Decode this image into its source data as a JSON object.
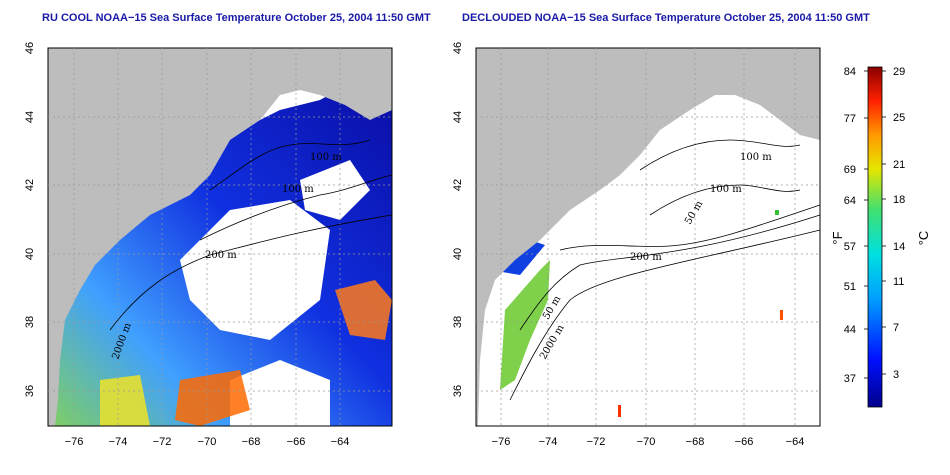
{
  "titles": {
    "left": "RU COOL NOAA−15 Sea Surface Temperature October 25, 2004 11:50 GMT",
    "right": "DECLOUDED NOAA−15 Sea Surface Temperature October 25, 2004 11:50 GMT"
  },
  "axes": {
    "lon_ticks": [
      "−76",
      "−74",
      "−72",
      "−70",
      "−68",
      "−66",
      "−64"
    ],
    "lat_ticks": [
      "46",
      "44",
      "42",
      "40",
      "38",
      "36"
    ]
  },
  "contour_labels": {
    "left": [
      "100 m",
      "100 m",
      "200 m",
      "2000 m"
    ],
    "right": [
      "100 m",
      "100 m",
      "50 m",
      "200 m",
      "50 m",
      "2000 m"
    ]
  },
  "colorbar": {
    "unit_f": "°F",
    "unit_c": "°C",
    "f_ticks": [
      "84",
      "77",
      "69",
      "64",
      "57",
      "51",
      "44",
      "37"
    ],
    "c_ticks": [
      "29",
      "25",
      "21",
      "18",
      "14",
      "11",
      "7",
      "3"
    ]
  },
  "colors": {
    "land": "#bdbdbd",
    "title": "#1a1aa8",
    "cold": "#00008b",
    "warm": "#b30000"
  }
}
